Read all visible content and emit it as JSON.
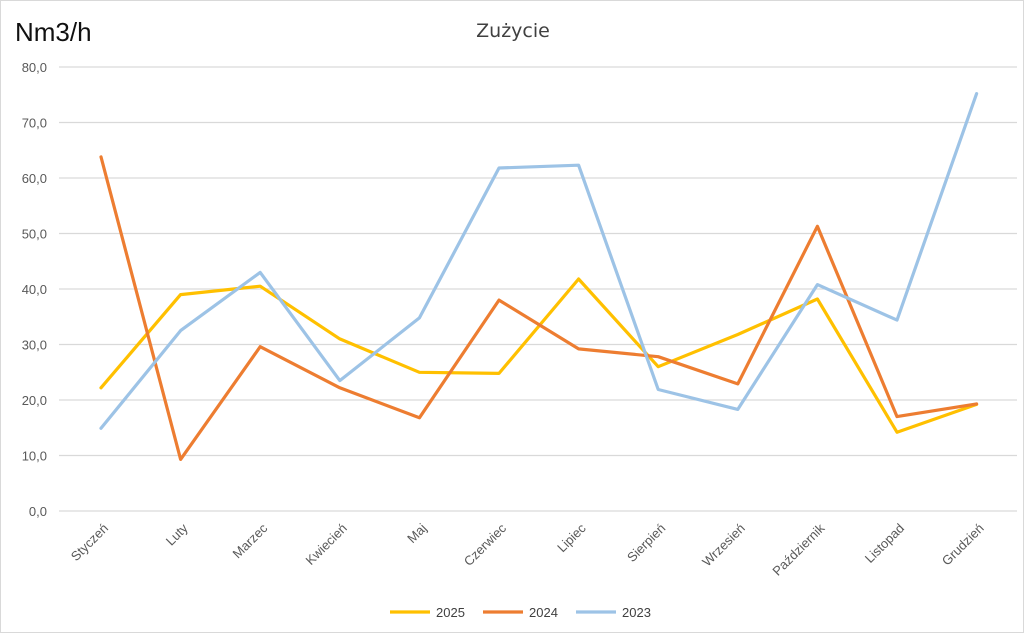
{
  "chart_data": {
    "type": "line",
    "title": "Zużycie",
    "ylabel": "Nm3/h",
    "xlabel": "",
    "ylim": [
      0,
      80
    ],
    "yticks": [
      "0,0",
      "10,0",
      "20,0",
      "30,0",
      "40,0",
      "50,0",
      "60,0",
      "70,0",
      "80,0"
    ],
    "categories": [
      "Styczeń",
      "Luty",
      "Marzec",
      "Kwiecień",
      "Maj",
      "Czerwiec",
      "Lipiec",
      "Sierpień",
      "Wrzesień",
      "Październik",
      "Listopad",
      "Grudzień"
    ],
    "series": [
      {
        "name": "2025",
        "color": "#FFC000",
        "values": [
          22.2,
          39.0,
          40.5,
          31.0,
          25.0,
          24.8,
          41.8,
          26.0,
          31.8,
          38.2,
          14.2,
          19.2
        ]
      },
      {
        "name": "2024",
        "color": "#ED7D31",
        "values": [
          63.8,
          9.3,
          29.6,
          22.2,
          16.8,
          38.0,
          29.2,
          27.8,
          22.9,
          51.3,
          17.0,
          19.3
        ]
      },
      {
        "name": "2023",
        "color": "#9DC3E6",
        "values": [
          14.9,
          32.5,
          43.0,
          23.5,
          34.8,
          61.8,
          62.3,
          21.9,
          18.3,
          40.8,
          34.4,
          75.2
        ]
      }
    ],
    "grid": true,
    "legend": "bottom"
  }
}
